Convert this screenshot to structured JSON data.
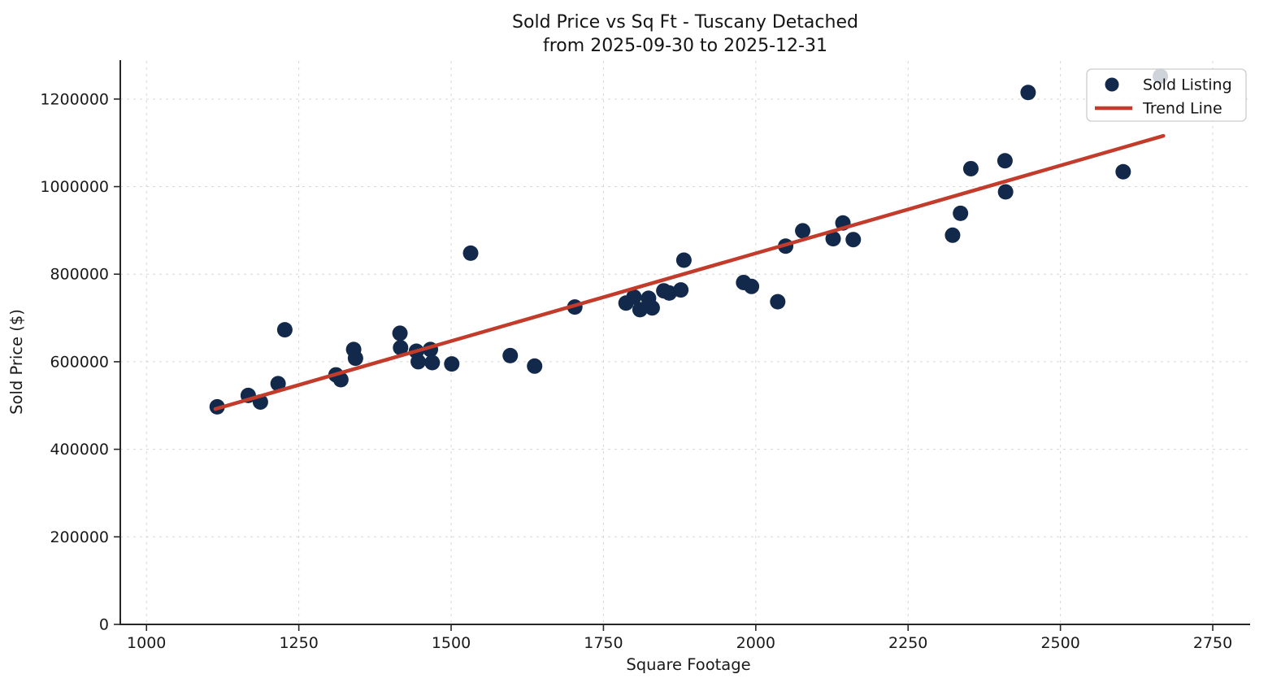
{
  "title": {
    "line1": "Sold Price vs Sq Ft - Tuscany Detached",
    "line2": "from 2025-09-30 to 2025-12-31"
  },
  "axes": {
    "xlabel": "Square Footage",
    "ylabel": "Sold Price ($)"
  },
  "colors": {
    "dot": "#13294b",
    "trend": "#c23b2b",
    "spine": "#262626",
    "grid": "#d6d6d6",
    "background": "#ffffff"
  },
  "chart_data": {
    "type": "scatter",
    "title": "Sold Price vs Sq Ft - Tuscany Detached\nfrom 2025-09-30 to 2025-12-31",
    "title_lines": [
      "Sold Price vs Sq Ft - Tuscany Detached",
      "from 2025-09-30 to 2025-12-31"
    ],
    "xlabel": "Square Footage",
    "ylabel": "Sold Price ($)",
    "xlim": [
      957,
      2810
    ],
    "ylim": [
      0,
      1287000
    ],
    "x_ticks": [
      1000,
      1250,
      1500,
      1750,
      2000,
      2250,
      2500,
      2750
    ],
    "y_ticks": [
      0,
      200000,
      400000,
      600000,
      800000,
      1000000,
      1200000
    ],
    "grid": true,
    "legend_position": "upper right",
    "series": [
      {
        "name": "Sold Listing",
        "type": "scatter",
        "color": "#13294b",
        "points": [
          [
            1116,
            497000
          ],
          [
            1167,
            523000
          ],
          [
            1187,
            508000
          ],
          [
            1216,
            550000
          ],
          [
            1227,
            673000
          ],
          [
            1311,
            570000
          ],
          [
            1319,
            559000
          ],
          [
            1340,
            628000
          ],
          [
            1343,
            608000
          ],
          [
            1416,
            665000
          ],
          [
            1417,
            632000
          ],
          [
            1443,
            624000
          ],
          [
            1446,
            600000
          ],
          [
            1466,
            628000
          ],
          [
            1469,
            598000
          ],
          [
            1501,
            595000
          ],
          [
            1532,
            848000
          ],
          [
            1597,
            614000
          ],
          [
            1637,
            590000
          ],
          [
            1703,
            725000
          ],
          [
            1787,
            734000
          ],
          [
            1800,
            748000
          ],
          [
            1810,
            719000
          ],
          [
            1824,
            745000
          ],
          [
            1830,
            723000
          ],
          [
            1849,
            762000
          ],
          [
            1858,
            757000
          ],
          [
            1877,
            764000
          ],
          [
            1882,
            832000
          ],
          [
            1980,
            781000
          ],
          [
            1993,
            772000
          ],
          [
            2036,
            737000
          ],
          [
            2049,
            864000
          ],
          [
            2077,
            899000
          ],
          [
            2127,
            881000
          ],
          [
            2143,
            917000
          ],
          [
            2160,
            879000
          ],
          [
            2323,
            889000
          ],
          [
            2336,
            939000
          ],
          [
            2353,
            1041000
          ],
          [
            2409,
            1059000
          ],
          [
            2410,
            988000
          ],
          [
            2447,
            1215000
          ],
          [
            2603,
            1034000
          ],
          [
            2664,
            1252000
          ]
        ]
      },
      {
        "name": "Trend Line",
        "type": "line",
        "color": "#c23b2b",
        "points": [
          [
            1113,
            492000
          ],
          [
            2669,
            1116000
          ]
        ]
      }
    ]
  }
}
